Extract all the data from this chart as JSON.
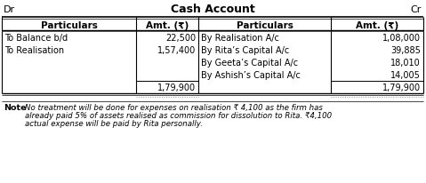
{
  "title": "Cash Account",
  "dr": "Dr",
  "cr": "Cr",
  "headers": [
    "Particulars",
    "Amt. (₹)",
    "Particulars",
    "Amt. (₹)"
  ],
  "left_rows": [
    [
      "To Balance b/d",
      "22,500"
    ],
    [
      "To Realisation",
      "1,57,400"
    ],
    [
      "",
      ""
    ],
    [
      "",
      ""
    ],
    [
      "",
      "1,79,900"
    ]
  ],
  "right_rows": [
    [
      "By Realisation A/c",
      "1,08,000"
    ],
    [
      "By Rita’s Capital A/c",
      "39,885"
    ],
    [
      "By Geeta’s Capital A/c",
      "18,010"
    ],
    [
      "By Ashish’s Capital A/c",
      "14,005"
    ],
    [
      "",
      "1,79,900"
    ]
  ],
  "note_bold": "Note",
  "note_line1": "No treatment will be done for expenses on realisation ₹ 4,100 as the firm has",
  "note_line2": "already paid 5% of assets realised as commission for dissolution to Rita. ₹4,100",
  "note_line3": "actual expense will be paid by Rita personally.",
  "bg_color": "#ffffff",
  "line_color": "#000000",
  "text_color": "#000000"
}
